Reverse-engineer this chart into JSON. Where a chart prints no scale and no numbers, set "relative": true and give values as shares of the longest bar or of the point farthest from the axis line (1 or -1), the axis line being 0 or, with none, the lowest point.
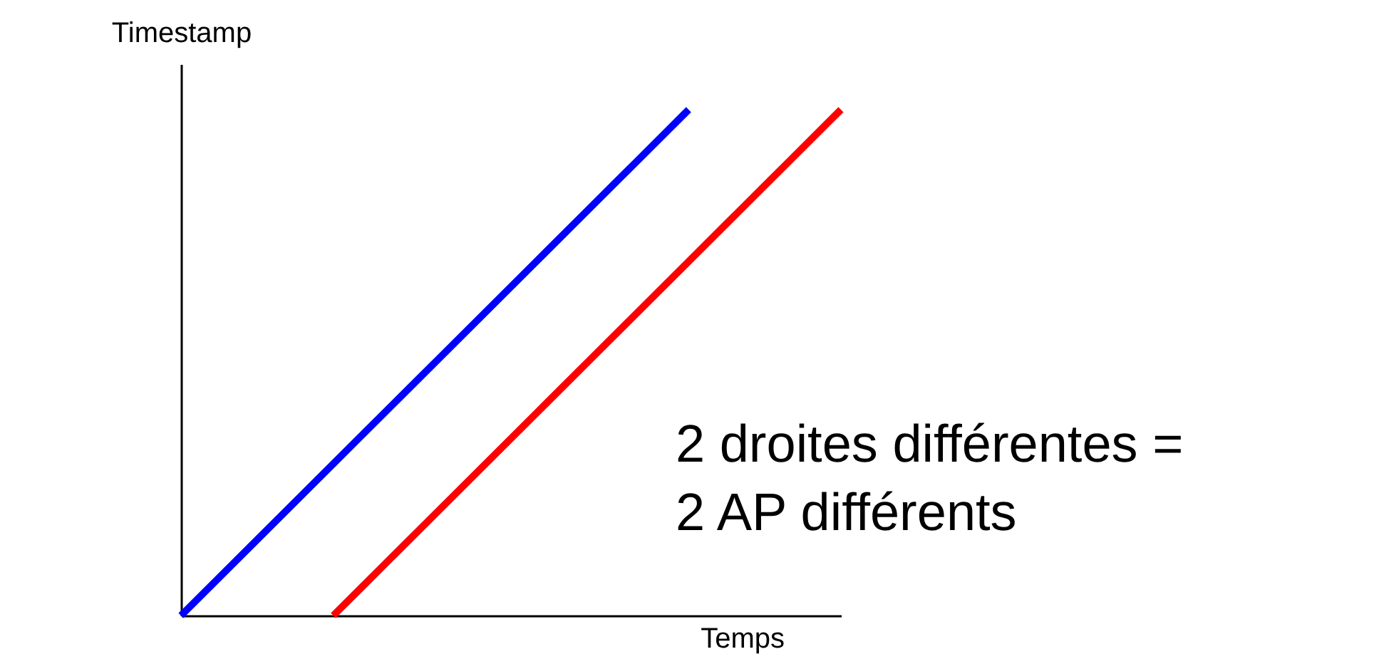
{
  "chart_data": {
    "type": "line",
    "relative": true,
    "xlabel": "Temps",
    "ylabel": "Timestamp",
    "categories": [
      null,
      null,
      null,
      null,
      null,
      null,
      null,
      null,
      null,
      null,
      null,
      null,
      null,
      null
    ],
    "series": [
      {
        "color": "#0000ff",
        "values": [
          0,
          0.1,
          0.2,
          0.3,
          0.4,
          0.5,
          0.6,
          0.7,
          0.8,
          0.9,
          1,
          null,
          null,
          null
        ]
      },
      {
        "color": "#ff0000",
        "values": [
          null,
          null,
          null,
          0,
          0.1,
          0.2,
          0.3,
          0.4,
          0.5,
          0.6,
          0.7,
          0.8,
          0.9,
          1
        ]
      }
    ],
    "annotations": [
      "2 droites différentes =\n2 AP différents"
    ]
  }
}
